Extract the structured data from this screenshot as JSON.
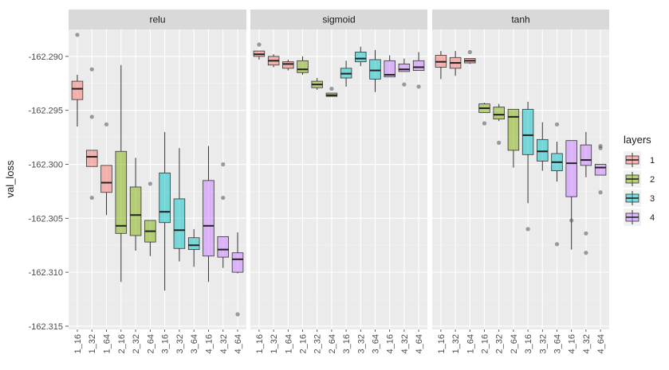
{
  "chart_data": {
    "type": "boxplot",
    "ylabel": "val_loss",
    "xlabel": "",
    "ylim": [
      -162.3153,
      -162.2875
    ],
    "yticks": [
      -162.29,
      -162.295,
      -162.3,
      -162.305,
      -162.31,
      -162.315
    ],
    "ytick_labels": [
      "-162.290",
      "-162.295",
      "-162.300",
      "-162.305",
      "-162.310",
      "-162.315"
    ],
    "categories": [
      "1_16",
      "1_32",
      "1_64",
      "2_16",
      "2_32",
      "2_64",
      "3_16",
      "3_32",
      "3_64",
      "4_16",
      "4_32",
      "4_64"
    ],
    "category_layers": [
      "1",
      "1",
      "1",
      "2",
      "2",
      "2",
      "3",
      "3",
      "3",
      "4",
      "4",
      "4"
    ],
    "legend": {
      "title": "layers",
      "placement": "right",
      "entries": [
        {
          "label": "1",
          "color": "#f8766d"
        },
        {
          "label": "2",
          "color": "#7cae00"
        },
        {
          "label": "3",
          "color": "#00bfc4"
        },
        {
          "label": "4",
          "color": "#c77cff"
        }
      ]
    },
    "panels": [
      {
        "name": "relu",
        "boxes": [
          {
            "q1": -162.294,
            "median": -162.293,
            "q3": -162.2923,
            "whisker_low": -162.2965,
            "whisker_high": -162.2917,
            "outliers": [
              -162.288
            ]
          },
          {
            "q1": -162.3002,
            "median": -162.2993,
            "q3": -162.2987,
            "whisker_low": -162.3002,
            "whisker_high": -162.2987,
            "outliers": [
              -162.2912,
              -162.2956,
              -162.3031
            ]
          },
          {
            "q1": -162.3026,
            "median": -162.3017,
            "q3": -162.3001,
            "whisker_low": -162.3047,
            "whisker_high": -162.3001,
            "outliers": [
              -162.2963
            ]
          },
          {
            "q1": -162.3064,
            "median": -162.3057,
            "q3": -162.2988,
            "whisker_low": -162.3109,
            "whisker_high": -162.2908,
            "outliers": []
          },
          {
            "q1": -162.3066,
            "median": -162.3047,
            "q3": -162.3021,
            "whisker_low": -162.308,
            "whisker_high": -162.2994,
            "outliers": []
          },
          {
            "q1": -162.3072,
            "median": -162.3062,
            "q3": -162.3052,
            "whisker_low": -162.3085,
            "whisker_high": -162.3052,
            "outliers": [
              -162.3018
            ]
          },
          {
            "q1": -162.3054,
            "median": -162.3044,
            "q3": -162.3008,
            "whisker_low": -162.3117,
            "whisker_high": -162.297,
            "outliers": []
          },
          {
            "q1": -162.3078,
            "median": -162.3061,
            "q3": -162.3032,
            "whisker_low": -162.309,
            "whisker_high": -162.2985,
            "outliers": []
          },
          {
            "q1": -162.3079,
            "median": -162.3075,
            "q3": -162.3068,
            "whisker_low": -162.3095,
            "whisker_high": -162.306,
            "outliers": []
          },
          {
            "q1": -162.3085,
            "median": -162.3057,
            "q3": -162.3015,
            "whisker_low": -162.3109,
            "whisker_high": -162.2983,
            "outliers": []
          },
          {
            "q1": -162.3086,
            "median": -162.3079,
            "q3": -162.3067,
            "whisker_low": -162.3096,
            "whisker_high": -162.3067,
            "outliers": [
              -162.3,
              -162.3031
            ]
          },
          {
            "q1": -162.31,
            "median": -162.3088,
            "q3": -162.3082,
            "whisker_low": -162.3101,
            "whisker_high": -162.3063,
            "outliers": [
              -162.3139
            ]
          }
        ]
      },
      {
        "name": "sigmoid",
        "boxes": [
          {
            "q1": -162.29,
            "median": -162.2898,
            "q3": -162.2895,
            "whisker_low": -162.2903,
            "whisker_high": -162.2895,
            "outliers": [
              -162.2889
            ]
          },
          {
            "q1": -162.2908,
            "median": -162.2904,
            "q3": -162.29,
            "whisker_low": -162.291,
            "whisker_high": -162.2898,
            "outliers": []
          },
          {
            "q1": -162.2911,
            "median": -162.2907,
            "q3": -162.2905,
            "whisker_low": -162.2913,
            "whisker_high": -162.2903,
            "outliers": []
          },
          {
            "q1": -162.2915,
            "median": -162.2912,
            "q3": -162.2904,
            "whisker_low": -162.2917,
            "whisker_high": -162.29,
            "outliers": []
          },
          {
            "q1": -162.2929,
            "median": -162.2926,
            "q3": -162.2923,
            "whisker_low": -162.2931,
            "whisker_high": -162.292,
            "outliers": []
          },
          {
            "q1": -162.2937,
            "median": -162.2936,
            "q3": -162.2934,
            "whisker_low": -162.2937,
            "whisker_high": -162.2934,
            "outliers": [
              -162.293
            ]
          },
          {
            "q1": -162.292,
            "median": -162.2916,
            "q3": -162.2911,
            "whisker_low": -162.2928,
            "whisker_high": -162.2904,
            "outliers": []
          },
          {
            "q1": -162.2905,
            "median": -162.2902,
            "q3": -162.2896,
            "whisker_low": -162.2909,
            "whisker_high": -162.2891,
            "outliers": []
          },
          {
            "q1": -162.2921,
            "median": -162.2913,
            "q3": -162.2903,
            "whisker_low": -162.2933,
            "whisker_high": -162.2894,
            "outliers": []
          },
          {
            "q1": -162.2919,
            "median": -162.2917,
            "q3": -162.2904,
            "whisker_low": -162.2919,
            "whisker_high": -162.2899,
            "outliers": []
          },
          {
            "q1": -162.2914,
            "median": -162.2912,
            "q3": -162.2907,
            "whisker_low": -162.2914,
            "whisker_high": -162.2902,
            "outliers": [
              -162.2926
            ]
          },
          {
            "q1": -162.2913,
            "median": -162.291,
            "q3": -162.2904,
            "whisker_low": -162.2913,
            "whisker_high": -162.2896,
            "outliers": [
              -162.2928
            ]
          }
        ]
      },
      {
        "name": "tanh",
        "boxes": [
          {
            "q1": -162.291,
            "median": -162.2905,
            "q3": -162.2899,
            "whisker_low": -162.2921,
            "whisker_high": -162.2895,
            "outliers": []
          },
          {
            "q1": -162.2911,
            "median": -162.2906,
            "q3": -162.2901,
            "whisker_low": -162.2918,
            "whisker_high": -162.2895,
            "outliers": []
          },
          {
            "q1": -162.2906,
            "median": -162.2904,
            "q3": -162.2902,
            "whisker_low": -162.2907,
            "whisker_high": -162.2902,
            "outliers": [
              -162.2896
            ]
          },
          {
            "q1": -162.2952,
            "median": -162.2948,
            "q3": -162.2944,
            "whisker_low": -162.2952,
            "whisker_high": -162.2943,
            "outliers": [
              -162.2962
            ]
          },
          {
            "q1": -162.2958,
            "median": -162.2954,
            "q3": -162.2947,
            "whisker_low": -162.296,
            "whisker_high": -162.2944,
            "outliers": [
              -162.298
            ]
          },
          {
            "q1": -162.2987,
            "median": -162.2956,
            "q3": -162.2949,
            "whisker_low": -162.3003,
            "whisker_high": -162.2949,
            "outliers": []
          },
          {
            "q1": -162.2991,
            "median": -162.2973,
            "q3": -162.2949,
            "whisker_low": -162.3036,
            "whisker_high": -162.2942,
            "outliers": [
              -162.306
            ]
          },
          {
            "q1": -162.2997,
            "median": -162.2988,
            "q3": -162.2977,
            "whisker_low": -162.3006,
            "whisker_high": -162.2961,
            "outliers": []
          },
          {
            "q1": -162.3006,
            "median": -162.2998,
            "q3": -162.299,
            "whisker_low": -162.3016,
            "whisker_high": -162.2979,
            "outliers": [
              -162.2963,
              -162.3074
            ]
          },
          {
            "q1": -162.303,
            "median": -162.2999,
            "q3": -162.2978,
            "whisker_low": -162.3079,
            "whisker_high": -162.2978,
            "outliers": [
              -162.3052
            ]
          },
          {
            "q1": -162.3001,
            "median": -162.2996,
            "q3": -162.2982,
            "whisker_low": -162.3012,
            "whisker_high": -162.297,
            "outliers": [
              -162.3064,
              -162.3082
            ]
          },
          {
            "q1": -162.301,
            "median": -162.3003,
            "q3": -162.3,
            "whisker_low": -162.301,
            "whisker_high": -162.3,
            "outliers": [
              -162.2983,
              -162.2985,
              -162.3026
            ]
          }
        ]
      }
    ]
  }
}
